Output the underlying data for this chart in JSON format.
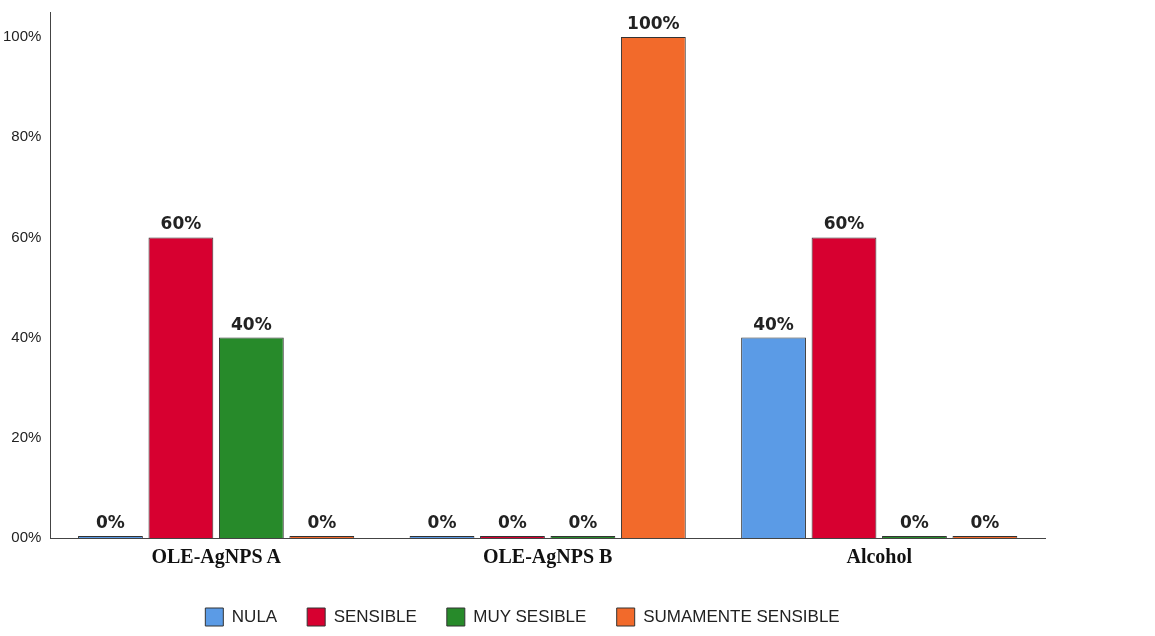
{
  "chart_data": {
    "type": "bar",
    "categories": [
      "OLE-AgNPS A",
      "OLE-AgNPS B",
      "Alcohol"
    ],
    "series": [
      {
        "name": "NULA",
        "color": "#5b9be6",
        "values": [
          0,
          0,
          40
        ],
        "value_labels": [
          "0%",
          "0%",
          "40%"
        ]
      },
      {
        "name": "SENSIBLE",
        "color": "#d70030",
        "values": [
          60,
          0,
          60
        ],
        "value_labels": [
          "60%",
          "0%",
          "60%"
        ]
      },
      {
        "name": "MUY SESIBLE",
        "color": "#278a2a",
        "values": [
          40,
          0,
          0
        ],
        "value_labels": [
          "40%",
          "0%",
          "0%"
        ]
      },
      {
        "name": "SUMAMENTE SENSIBLE",
        "color": "#f26a2b",
        "values": [
          0,
          100,
          0
        ],
        "value_labels": [
          "0%",
          "100%",
          "0%"
        ]
      }
    ],
    "ylim": [
      0,
      105
    ],
    "yticks": [
      {
        "value": 0,
        "label": "00%"
      },
      {
        "value": 20,
        "label": "20%"
      },
      {
        "value": 40,
        "label": "40%"
      },
      {
        "value": 60,
        "label": "60%"
      },
      {
        "value": 80,
        "label": "80%"
      },
      {
        "value": 100,
        "label": "100%"
      }
    ],
    "grid": false,
    "legend": "bottom"
  }
}
